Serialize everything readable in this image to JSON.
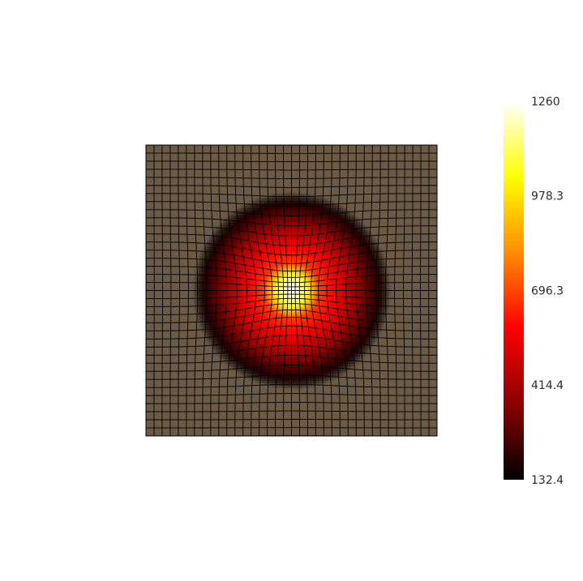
{
  "chart_data": {
    "type": "heatmap",
    "title": "",
    "xlabel": "",
    "ylabel": "",
    "grid": true,
    "colorscale": "hot",
    "colorscale_stops": [
      "#000000",
      "#8b0000",
      "#ff0000",
      "#ff8c00",
      "#ffff00",
      "#ffffff"
    ],
    "background_color": "#6b5a45",
    "mesh_color": "#000000",
    "mesh_size": [
      36,
      36
    ],
    "field": {
      "peak_value": 1260,
      "min_value": 132.4,
      "center": [
        0,
        0
      ],
      "domain": [
        -1,
        1
      ],
      "hot_core_radius": 0.2,
      "glow_radius": 0.68
    },
    "colorbar": {
      "min": 132.4,
      "max": 1260,
      "tick_values": [
        132.4,
        414.4,
        696.3,
        978.3,
        1260
      ],
      "tick_labels": [
        "132.4",
        "414.4",
        "696.3",
        "978.3",
        "1260"
      ],
      "placement": "right"
    }
  }
}
